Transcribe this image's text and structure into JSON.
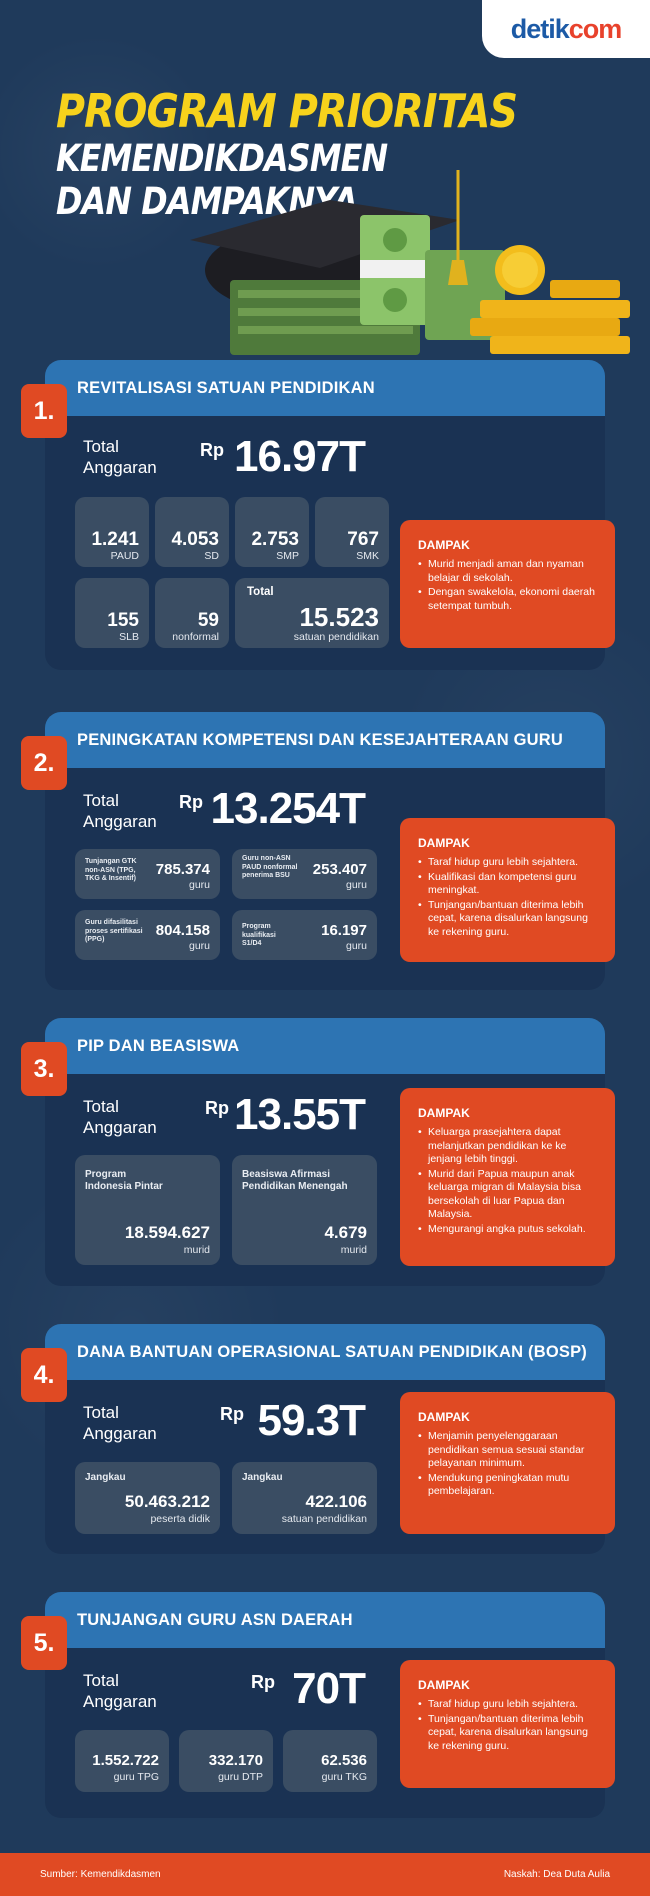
{
  "brand": {
    "part1": "detik",
    "part2": "com"
  },
  "title": {
    "line1": "PROGRAM PRIORITAS",
    "line2": "KEMENDIKDASMEN",
    "line3": "DAN DAMPAKNYA"
  },
  "common": {
    "total_l1": "Total",
    "total_l2": "Anggaran",
    "rp": "Rp",
    "dampak": "DAMPAK"
  },
  "s1": {
    "num": "1.",
    "title": "REVITALISASI SATUAN PENDIDIKAN",
    "amount": "16.97T",
    "stats": [
      {
        "v": "1.241",
        "u": "PAUD"
      },
      {
        "v": "4.053",
        "u": "SD"
      },
      {
        "v": "2.753",
        "u": "SMP"
      },
      {
        "v": "767",
        "u": "SMK"
      },
      {
        "v": "155",
        "u": "SLB"
      },
      {
        "v": "59",
        "u": "nonformal"
      }
    ],
    "total_label": "Total",
    "total_value": "15.523",
    "total_unit": "satuan pendidikan",
    "impacts": [
      "Murid menjadi aman dan nyaman belajar di sekolah.",
      "Dengan swakelola, ekonomi daerah setempat tumbuh."
    ]
  },
  "s2": {
    "num": "2.",
    "title": "PENINGKATAN KOMPETENSI DAN KESEJAHTERAAN GURU",
    "amount": "13.254T",
    "stats": [
      {
        "l": "Tunjangan GTK non-ASN (TPG, TKG & Insentif)",
        "v": "785.374",
        "u": "guru"
      },
      {
        "l": "Guru non-ASN PAUD nonformal penerima BSU",
        "v": "253.407",
        "u": "guru"
      },
      {
        "l": "Guru difasilitasi proses sertifikasi (PPG)",
        "v": "804.158",
        "u": "guru"
      },
      {
        "l": "Program kualifikasi S1/D4",
        "v": "16.197",
        "u": "guru"
      }
    ],
    "impacts": [
      "Taraf hidup guru lebih sejahtera.",
      "Kualifikasi dan kompetensi guru meningkat.",
      "Tunjangan/bantuan diterima lebih cepat, karena disalurkan langsung ke rekening guru."
    ]
  },
  "s3": {
    "num": "3.",
    "title": "PIP DAN BEASISWA",
    "amount": "13.55T",
    "stats": [
      {
        "l": "Program Indonesia Pintar",
        "v": "18.594.627",
        "u": "murid"
      },
      {
        "l": "Beasiswa Afirmasi Pendidikan Menengah",
        "v": "4.679",
        "u": "murid"
      }
    ],
    "impacts": [
      "Keluarga prasejahtera dapat melanjutkan pendidikan ke ke jenjang lebih tinggi.",
      "Murid dari Papua maupun anak keluarga migran di Malaysia bisa bersekolah di luar Papua dan Malaysia.",
      "Mengurangi angka putus sekolah."
    ]
  },
  "s4": {
    "num": "4.",
    "title": "DANA BANTUAN OPERASIONAL SATUAN PENDIDIKAN (BOSP)",
    "amount": "59.3T",
    "stats": [
      {
        "l": "Jangkau",
        "v": "50.463.212",
        "u": "peserta didik"
      },
      {
        "l": "Jangkau",
        "v": "422.106",
        "u": "satuan pendidikan"
      }
    ],
    "impacts": [
      "Menjamin penyelenggaraan pendidikan semua sesuai standar pelayanan minimum.",
      "Mendukung peningkatan mutu pembelajaran."
    ]
  },
  "s5": {
    "num": "5.",
    "title": "TUNJANGAN GURU ASN DAERAH",
    "amount": "70T",
    "stats": [
      {
        "v": "1.552.722",
        "u": "guru TPG"
      },
      {
        "v": "332.170",
        "u": "guru DTP"
      },
      {
        "v": "62.536",
        "u": "guru TKG"
      }
    ],
    "impacts": [
      "Taraf hidup guru lebih sejahtera.",
      "Tunjangan/bantuan diterima lebih cepat, karena disalurkan langsung ke rekening guru."
    ]
  },
  "footer": {
    "source": "Sumber: Kemendikdasmen",
    "author": "Naskah: Dea Duta Aulia"
  }
}
